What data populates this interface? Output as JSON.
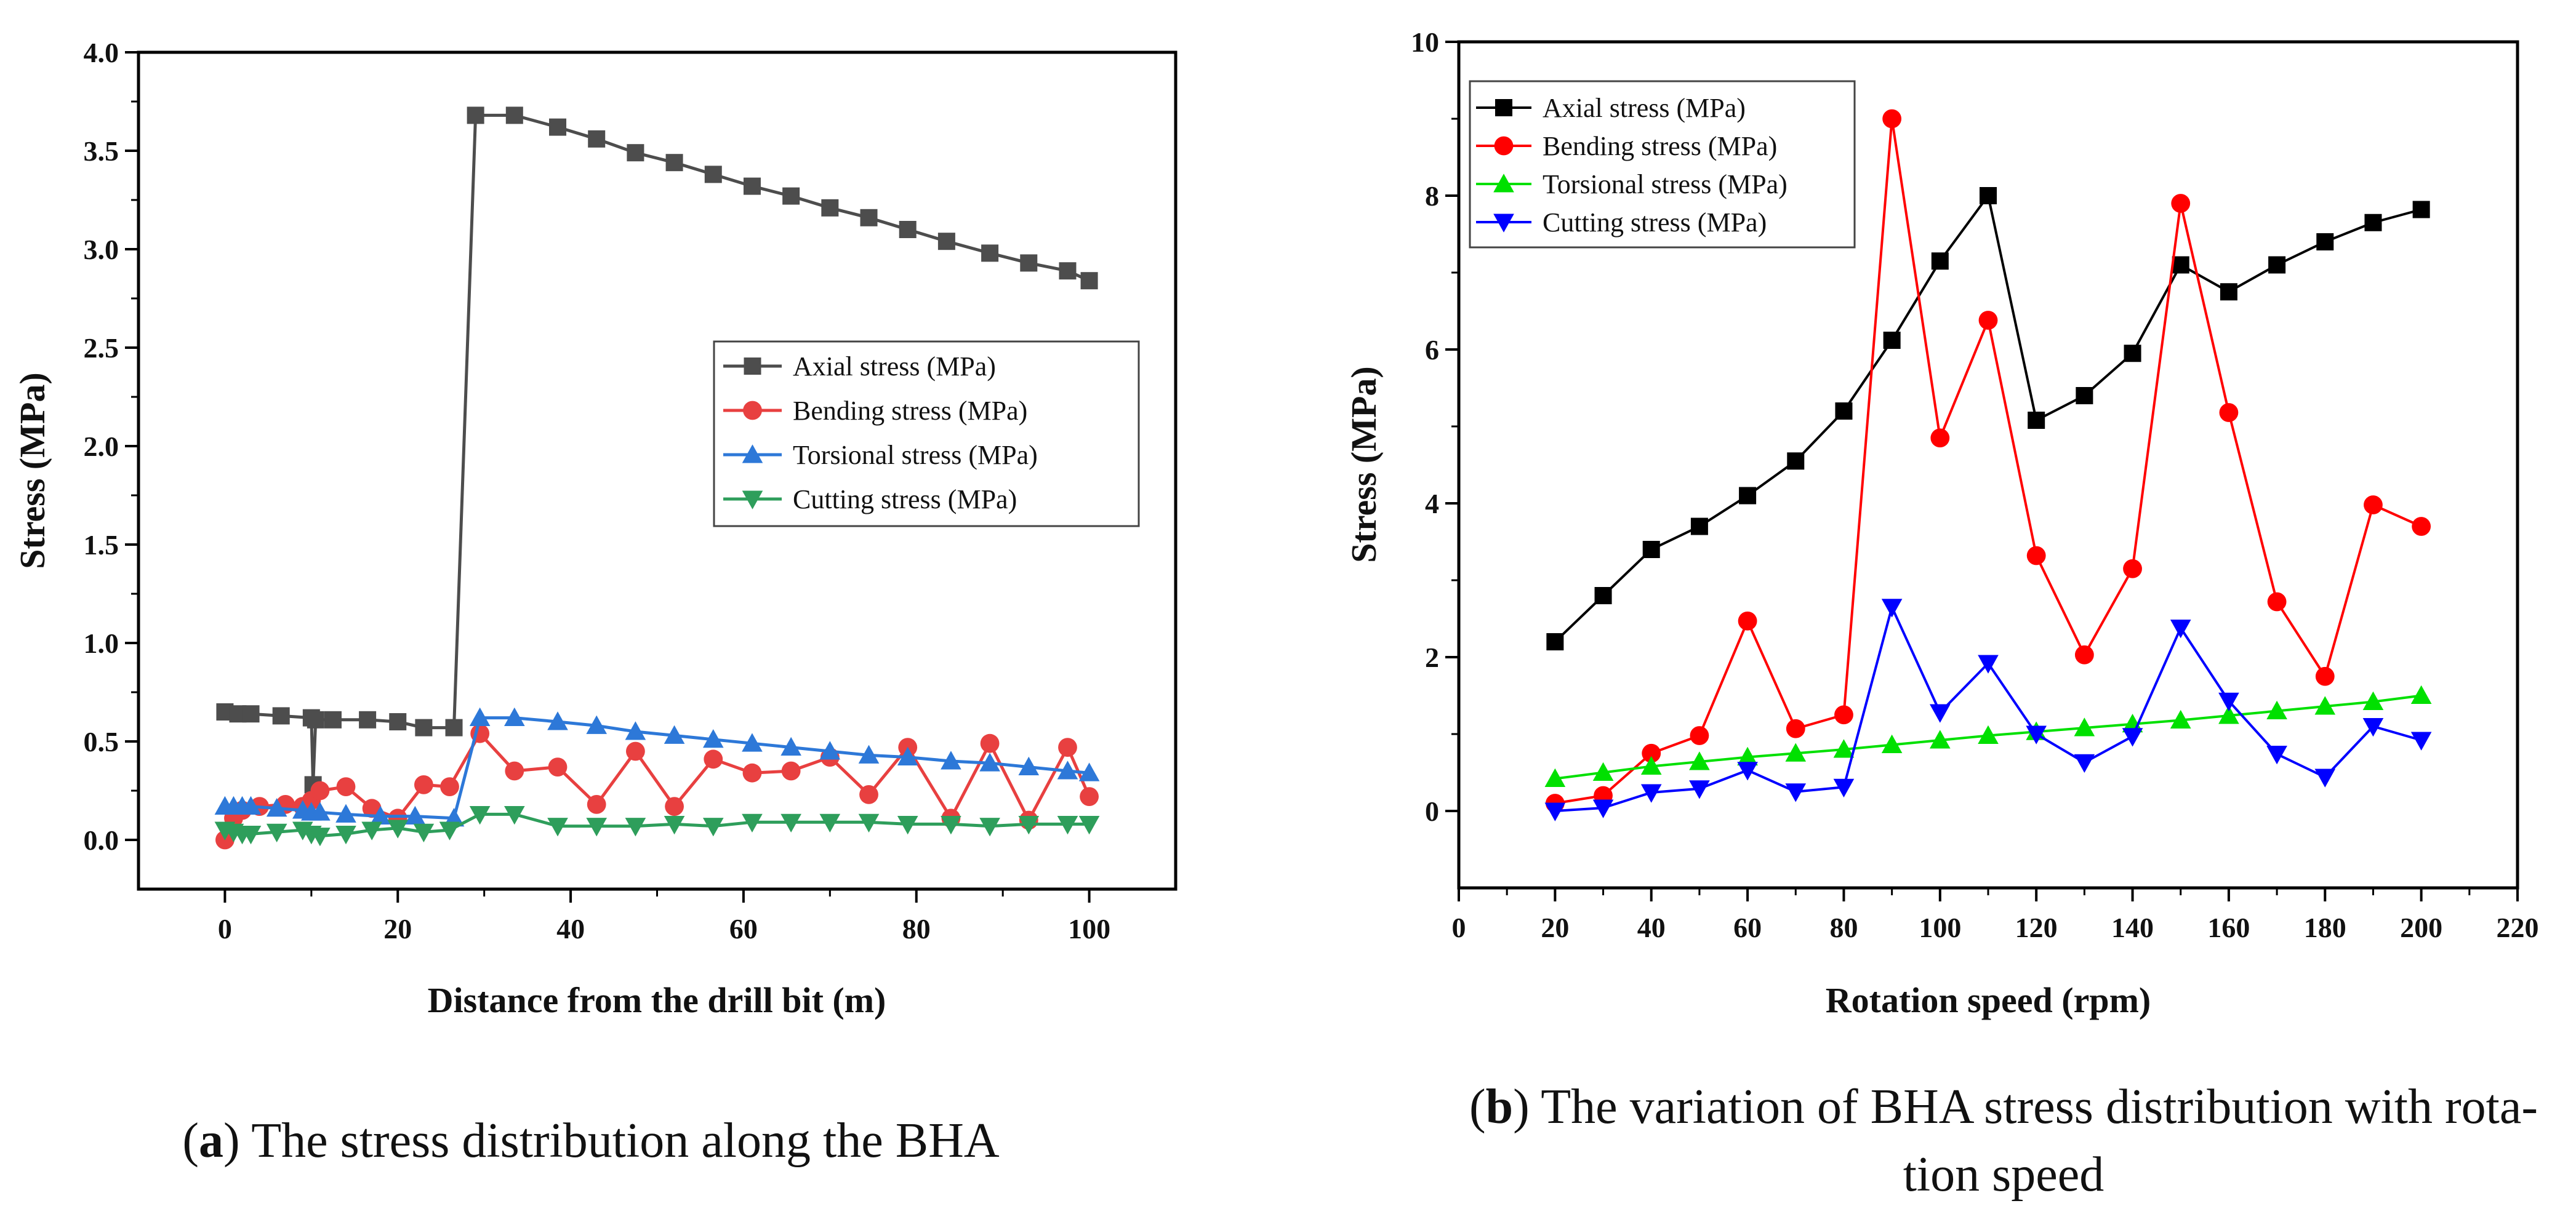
{
  "chart_data": [
    {
      "type": "line",
      "panel": "a",
      "xlabel": "Distance from the drill bit (m)",
      "ylabel": "Stress (MPa)",
      "xlim": [
        -10,
        110
      ],
      "ylim": [
        -0.25,
        4.0
      ],
      "xticks": [
        0,
        20,
        40,
        60,
        80,
        100
      ],
      "yticks": [
        0.0,
        0.5,
        1.0,
        1.5,
        2.0,
        2.5,
        3.0,
        3.5,
        4.0
      ],
      "ytick_labels": [
        "0.0",
        "0.5",
        "1.0",
        "1.5",
        "2.0",
        "2.5",
        "3.0",
        "3.5",
        "4.0"
      ],
      "legend_position": "center-right",
      "series": [
        {
          "name": "Axial stress (MPa)",
          "color": "#4d4d4d",
          "marker": "square",
          "x": [
            0,
            1.5,
            3,
            6.5,
            10,
            10.2,
            10.5,
            12.5,
            16.5,
            20,
            23,
            26.5,
            29,
            33.5,
            38.5,
            43,
            47.5,
            52,
            56.5,
            61,
            65.5,
            70,
            74.5,
            79,
            83.5,
            88.5,
            93,
            97.5,
            100
          ],
          "y": [
            0.65,
            0.64,
            0.64,
            0.63,
            0.62,
            0.28,
            0.61,
            0.61,
            0.61,
            0.6,
            0.57,
            0.57,
            3.68,
            3.68,
            3.62,
            3.56,
            3.49,
            3.44,
            3.38,
            3.32,
            3.27,
            3.21,
            3.16,
            3.1,
            3.04,
            2.98,
            2.93,
            2.89,
            2.84
          ]
        },
        {
          "name": "Bending stress (MPa)",
          "color": "#e84040",
          "marker": "circle",
          "x": [
            0,
            1,
            2,
            4,
            7,
            9,
            10,
            11,
            14,
            17,
            20,
            23,
            26,
            29.5,
            33.5,
            38.5,
            43,
            47.5,
            52,
            56.5,
            61,
            65.5,
            70,
            74.5,
            79,
            84,
            88.5,
            93,
            97.5,
            100
          ],
          "y": [
            0.0,
            0.11,
            0.15,
            0.17,
            0.18,
            0.17,
            0.2,
            0.25,
            0.27,
            0.16,
            0.11,
            0.28,
            0.27,
            0.54,
            0.35,
            0.37,
            0.18,
            0.45,
            0.17,
            0.41,
            0.34,
            0.35,
            0.42,
            0.23,
            0.47,
            0.11,
            0.49,
            0.1,
            0.47,
            0.22
          ]
        },
        {
          "name": "Torsional stress (MPa)",
          "color": "#2d78d8",
          "marker": "triangle-up",
          "x": [
            0,
            1,
            2,
            3,
            6,
            9,
            10,
            11,
            14,
            18,
            22,
            26.5,
            29.5,
            33.5,
            38.5,
            43,
            47.5,
            52,
            56.5,
            61,
            65.5,
            70,
            74.5,
            79,
            84,
            88.5,
            93,
            97.5,
            100
          ],
          "y": [
            0.17,
            0.17,
            0.17,
            0.17,
            0.16,
            0.15,
            0.14,
            0.14,
            0.13,
            0.12,
            0.12,
            0.11,
            0.62,
            0.62,
            0.6,
            0.58,
            0.55,
            0.53,
            0.51,
            0.49,
            0.47,
            0.45,
            0.43,
            0.42,
            0.4,
            0.39,
            0.37,
            0.35,
            0.34
          ]
        },
        {
          "name": "Cutting stress (MPa)",
          "color": "#2e9e5b",
          "marker": "triangle-down",
          "x": [
            0,
            1,
            2,
            3,
            6,
            9,
            10,
            11,
            14,
            17,
            20,
            23,
            26,
            29.5,
            33.5,
            38.5,
            43,
            47.5,
            52,
            56.5,
            61,
            65.5,
            70,
            74.5,
            79,
            84,
            88.5,
            93,
            97.5,
            100
          ],
          "y": [
            0.05,
            0.04,
            0.03,
            0.03,
            0.04,
            0.05,
            0.03,
            0.02,
            0.03,
            0.05,
            0.06,
            0.04,
            0.05,
            0.13,
            0.13,
            0.07,
            0.07,
            0.07,
            0.08,
            0.07,
            0.09,
            0.09,
            0.09,
            0.09,
            0.08,
            0.08,
            0.07,
            0.08,
            0.08,
            0.08
          ]
        }
      ]
    },
    {
      "type": "line",
      "panel": "b",
      "xlabel": "Rotation speed (rpm)",
      "ylabel": "Stress (MPa)",
      "xlim": [
        0,
        220
      ],
      "ylim": [
        -1,
        10
      ],
      "xticks": [
        0,
        20,
        40,
        60,
        80,
        100,
        120,
        140,
        160,
        180,
        200,
        220
      ],
      "yticks": [
        0,
        2,
        4,
        6,
        8,
        10
      ],
      "ytick_labels": [
        "0",
        "2",
        "4",
        "6",
        "8",
        "10"
      ],
      "legend_position": "top-left",
      "series": [
        {
          "name": "Axial stress (MPa)",
          "color": "#000000",
          "marker": "square",
          "x": [
            20,
            30,
            40,
            50,
            60,
            70,
            80,
            90,
            100,
            110,
            120,
            130,
            140,
            150,
            160,
            170,
            180,
            190,
            200
          ],
          "y": [
            2.2,
            2.8,
            3.4,
            3.7,
            4.1,
            4.55,
            5.2,
            6.12,
            7.15,
            8.0,
            5.08,
            5.4,
            5.95,
            7.1,
            6.75,
            7.1,
            7.4,
            7.65,
            7.82
          ]
        },
        {
          "name": "Bending stress (MPa)",
          "color": "#ff0000",
          "marker": "circle",
          "x": [
            20,
            30,
            40,
            50,
            60,
            70,
            80,
            90,
            100,
            110,
            120,
            130,
            140,
            150,
            160,
            170,
            180,
            190,
            200
          ],
          "y": [
            0.1,
            0.2,
            0.75,
            0.98,
            2.47,
            1.07,
            1.25,
            9.0,
            4.85,
            6.38,
            3.32,
            2.03,
            3.15,
            7.9,
            5.18,
            2.72,
            1.75,
            3.98,
            3.7
          ]
        },
        {
          "name": "Torsional stress (MPa)",
          "color": "#00e000",
          "marker": "triangle-up",
          "x": [
            20,
            30,
            40,
            50,
            60,
            70,
            80,
            90,
            100,
            110,
            120,
            130,
            140,
            150,
            160,
            170,
            180,
            190,
            200
          ],
          "y": [
            0.42,
            0.5,
            0.58,
            0.64,
            0.7,
            0.75,
            0.8,
            0.86,
            0.92,
            0.98,
            1.03,
            1.08,
            1.13,
            1.18,
            1.24,
            1.3,
            1.36,
            1.42,
            1.5
          ]
        },
        {
          "name": "Cutting stress (MPa)",
          "color": "#0000ff",
          "marker": "triangle-down",
          "x": [
            20,
            30,
            40,
            50,
            60,
            70,
            80,
            90,
            100,
            110,
            120,
            130,
            140,
            150,
            160,
            170,
            180,
            190,
            200
          ],
          "y": [
            0.0,
            0.04,
            0.24,
            0.29,
            0.53,
            0.25,
            0.31,
            2.65,
            1.28,
            1.92,
            1.0,
            0.63,
            0.97,
            2.38,
            1.43,
            0.74,
            0.44,
            1.1,
            0.92
          ]
        }
      ]
    }
  ],
  "captions": {
    "a_label": "a",
    "a_text": ") The stress distribution along the BHA",
    "b_label": "b",
    "b_line1": ") The variation of BHA stress distribution with rota-",
    "b_line2": "tion speed"
  }
}
